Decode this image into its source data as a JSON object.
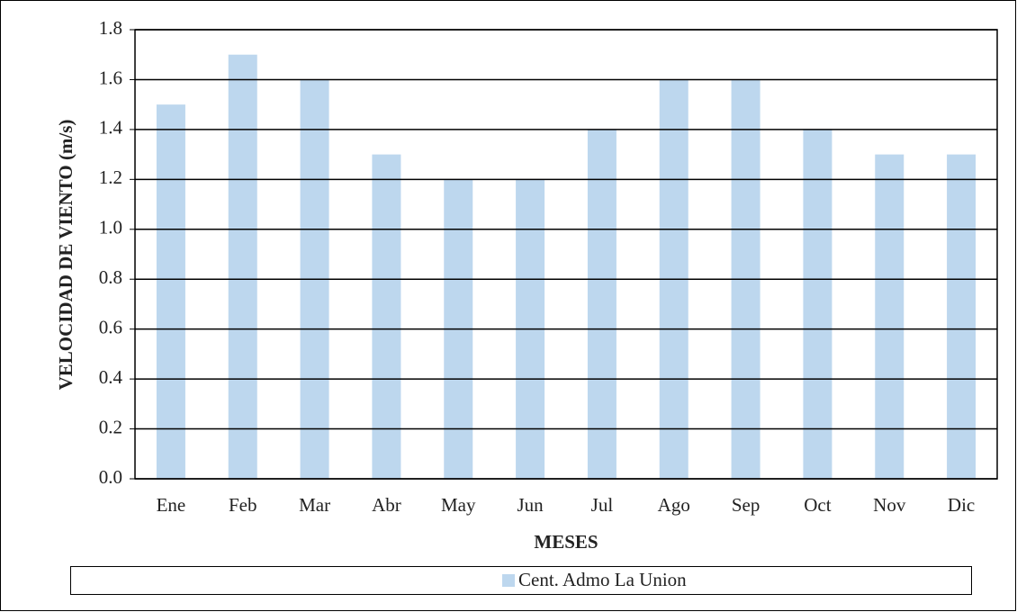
{
  "chart_data": {
    "type": "bar",
    "x_label": "MESES",
    "y_label": "VELOCIDAD DE VIENTO (m/s)",
    "categories": [
      "Ene",
      "Feb",
      "Mar",
      "Abr",
      "May",
      "Jun",
      "Jul",
      "Ago",
      "Sep",
      "Oct",
      "Nov",
      "Dic"
    ],
    "series": [
      {
        "name": "Cent. Admo La Union",
        "color": "#bdd7ee",
        "values": [
          1.5,
          1.7,
          1.6,
          1.3,
          1.2,
          1.2,
          1.4,
          1.6,
          1.6,
          1.4,
          1.3,
          1.3
        ]
      }
    ],
    "ylim": [
      0,
      1.8
    ],
    "yticks": [
      {
        "value": 0,
        "label": "0.0"
      },
      0.2,
      0.4,
      0.6,
      0.8,
      {
        "value": 1,
        "label": "1.0"
      },
      1.2,
      1.4,
      1.6,
      1.8
    ],
    "grid": true,
    "legend": "bottom"
  }
}
